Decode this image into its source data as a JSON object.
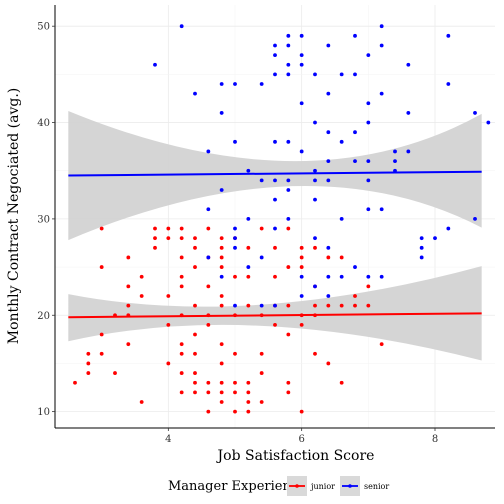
{
  "chart_data": {
    "type": "scatter",
    "title": "",
    "xlabel": "Job Satisfaction Score",
    "ylabel": "Monthly Contract Negociated (avg.)",
    "xlim": [
      2.3,
      8.9
    ],
    "ylim": [
      8.3,
      52.2
    ],
    "x_ticks": [
      4,
      6,
      8
    ],
    "y_ticks": [
      10,
      20,
      30,
      40,
      50
    ],
    "grid": true,
    "legend": {
      "title": "Manager Experience",
      "position": "bottom"
    },
    "series": [
      {
        "name": "junior",
        "color": "#ff0000",
        "trend": {
          "x": [
            2.5,
            8.7
          ],
          "y": [
            19.8,
            20.2
          ],
          "ci_low": [
            17.3,
            15.3
          ],
          "ci_high": [
            22.2,
            25.1
          ],
          "ci_mid_low": 18.9,
          "ci_mid_high": 21.1,
          "ci_mid_x": 5.2
        },
        "points": [
          [
            2.6,
            13
          ],
          [
            2.8,
            14
          ],
          [
            2.8,
            15
          ],
          [
            2.8,
            16
          ],
          [
            3.0,
            16
          ],
          [
            3.0,
            18
          ],
          [
            3.0,
            25
          ],
          [
            3.0,
            29
          ],
          [
            3.2,
            14
          ],
          [
            3.2,
            20
          ],
          [
            3.4,
            17
          ],
          [
            3.4,
            20
          ],
          [
            3.4,
            21
          ],
          [
            3.4,
            23
          ],
          [
            3.4,
            26
          ],
          [
            3.6,
            11
          ],
          [
            3.6,
            22
          ],
          [
            3.6,
            24
          ],
          [
            3.8,
            27
          ],
          [
            3.8,
            28
          ],
          [
            3.8,
            29
          ],
          [
            4.0,
            15
          ],
          [
            4.0,
            19
          ],
          [
            4.0,
            22
          ],
          [
            4.0,
            28
          ],
          [
            4.0,
            29
          ],
          [
            4.2,
            12
          ],
          [
            4.2,
            14
          ],
          [
            4.2,
            16
          ],
          [
            4.2,
            17
          ],
          [
            4.2,
            20
          ],
          [
            4.2,
            23
          ],
          [
            4.2,
            24
          ],
          [
            4.2,
            26
          ],
          [
            4.2,
            28
          ],
          [
            4.2,
            29
          ],
          [
            4.4,
            12
          ],
          [
            4.4,
            13
          ],
          [
            4.4,
            14
          ],
          [
            4.4,
            16
          ],
          [
            4.4,
            18
          ],
          [
            4.4,
            21
          ],
          [
            4.4,
            25
          ],
          [
            4.4,
            27
          ],
          [
            4.4,
            28
          ],
          [
            4.6,
            10
          ],
          [
            4.6,
            12
          ],
          [
            4.6,
            13
          ],
          [
            4.6,
            19
          ],
          [
            4.6,
            20
          ],
          [
            4.6,
            23
          ],
          [
            4.6,
            26
          ],
          [
            4.6,
            29
          ],
          [
            4.8,
            11
          ],
          [
            4.8,
            12
          ],
          [
            4.8,
            13
          ],
          [
            4.8,
            15
          ],
          [
            4.8,
            17
          ],
          [
            4.8,
            21
          ],
          [
            4.8,
            22
          ],
          [
            4.8,
            25
          ],
          [
            4.8,
            26
          ],
          [
            4.8,
            27
          ],
          [
            4.8,
            28
          ],
          [
            5.0,
            10
          ],
          [
            5.0,
            12
          ],
          [
            5.0,
            13
          ],
          [
            5.0,
            16
          ],
          [
            5.0,
            20
          ],
          [
            5.0,
            24
          ],
          [
            5.0,
            28
          ],
          [
            5.2,
            10
          ],
          [
            5.2,
            11
          ],
          [
            5.2,
            12
          ],
          [
            5.2,
            13
          ],
          [
            5.2,
            21
          ],
          [
            5.2,
            24
          ],
          [
            5.2,
            27
          ],
          [
            5.4,
            11
          ],
          [
            5.4,
            14
          ],
          [
            5.4,
            16
          ],
          [
            5.4,
            20
          ],
          [
            5.4,
            29
          ],
          [
            5.6,
            19
          ],
          [
            5.6,
            21
          ],
          [
            5.6,
            24
          ],
          [
            5.6,
            27
          ],
          [
            5.8,
            12
          ],
          [
            5.8,
            13
          ],
          [
            5.8,
            18
          ],
          [
            5.8,
            21
          ],
          [
            5.8,
            25
          ],
          [
            5.8,
            29
          ],
          [
            6.0,
            10
          ],
          [
            6.0,
            19
          ],
          [
            6.0,
            20
          ],
          [
            6.0,
            25
          ],
          [
            6.0,
            26
          ],
          [
            6.0,
            27
          ],
          [
            6.2,
            16
          ],
          [
            6.2,
            20
          ],
          [
            6.2,
            21
          ],
          [
            6.2,
            23
          ],
          [
            6.2,
            27
          ],
          [
            6.4,
            15
          ],
          [
            6.4,
            21
          ],
          [
            6.4,
            26
          ],
          [
            6.6,
            13
          ],
          [
            6.6,
            21
          ],
          [
            6.6,
            26
          ],
          [
            6.8,
            21
          ],
          [
            6.8,
            22
          ],
          [
            7.0,
            21
          ],
          [
            7.0,
            23
          ],
          [
            7.2,
            17
          ]
        ]
      },
      {
        "name": "senior",
        "color": "#0000ff",
        "trend": {
          "x": [
            2.5,
            8.7
          ],
          "y": [
            34.5,
            34.9
          ],
          "ci_low": [
            27.8,
            29.1
          ],
          "ci_high": [
            41.2,
            40.9
          ],
          "ci_mid_low": 33.4,
          "ci_mid_high": 36.0,
          "ci_mid_x": 6.1
        },
        "points": [
          [
            3.8,
            46
          ],
          [
            4.2,
            50
          ],
          [
            4.4,
            43
          ],
          [
            4.6,
            37
          ],
          [
            4.6,
            31
          ],
          [
            4.6,
            26
          ],
          [
            4.8,
            44
          ],
          [
            4.8,
            41
          ],
          [
            4.8,
            33
          ],
          [
            4.8,
            24
          ],
          [
            5.0,
            44
          ],
          [
            5.0,
            38
          ],
          [
            5.0,
            29
          ],
          [
            5.0,
            28
          ],
          [
            5.0,
            27
          ],
          [
            5.0,
            21
          ],
          [
            5.2,
            35
          ],
          [
            5.2,
            30
          ],
          [
            5.2,
            25
          ],
          [
            5.4,
            44
          ],
          [
            5.4,
            34
          ],
          [
            5.4,
            26
          ],
          [
            5.4,
            21
          ],
          [
            5.6,
            48
          ],
          [
            5.6,
            47
          ],
          [
            5.6,
            45
          ],
          [
            5.6,
            38
          ],
          [
            5.6,
            34
          ],
          [
            5.6,
            32
          ],
          [
            5.6,
            29
          ],
          [
            5.6,
            21
          ],
          [
            5.8,
            49
          ],
          [
            5.8,
            48
          ],
          [
            5.8,
            46
          ],
          [
            5.8,
            45
          ],
          [
            5.8,
            38
          ],
          [
            5.8,
            34
          ],
          [
            5.8,
            33
          ],
          [
            5.8,
            30
          ],
          [
            6.0,
            49
          ],
          [
            6.0,
            47
          ],
          [
            6.0,
            46
          ],
          [
            6.0,
            42
          ],
          [
            6.0,
            37
          ],
          [
            6.0,
            24
          ],
          [
            6.0,
            22
          ],
          [
            6.2,
            45
          ],
          [
            6.2,
            40
          ],
          [
            6.2,
            35
          ],
          [
            6.2,
            34
          ],
          [
            6.2,
            32
          ],
          [
            6.2,
            28
          ],
          [
            6.2,
            23
          ],
          [
            6.4,
            48
          ],
          [
            6.4,
            43
          ],
          [
            6.4,
            39
          ],
          [
            6.4,
            36
          ],
          [
            6.4,
            34
          ],
          [
            6.4,
            27
          ],
          [
            6.4,
            24
          ],
          [
            6.4,
            22
          ],
          [
            6.6,
            45
          ],
          [
            6.6,
            38
          ],
          [
            6.6,
            30
          ],
          [
            6.6,
            24
          ],
          [
            6.8,
            49
          ],
          [
            6.8,
            45
          ],
          [
            6.8,
            39
          ],
          [
            6.8,
            36
          ],
          [
            6.8,
            25
          ],
          [
            7.0,
            47
          ],
          [
            7.0,
            42
          ],
          [
            7.0,
            40
          ],
          [
            7.0,
            36
          ],
          [
            7.0,
            34
          ],
          [
            7.0,
            31
          ],
          [
            7.0,
            24
          ],
          [
            7.2,
            50
          ],
          [
            7.2,
            48
          ],
          [
            7.2,
            43
          ],
          [
            7.2,
            31
          ],
          [
            7.2,
            24
          ],
          [
            7.4,
            37
          ],
          [
            7.4,
            36
          ],
          [
            7.4,
            35
          ],
          [
            7.6,
            46
          ],
          [
            7.6,
            41
          ],
          [
            7.6,
            37
          ],
          [
            7.8,
            28
          ],
          [
            7.8,
            27
          ],
          [
            7.8,
            26
          ],
          [
            8.0,
            28
          ],
          [
            8.2,
            49
          ],
          [
            8.2,
            44
          ],
          [
            8.2,
            29
          ],
          [
            8.6,
            41
          ],
          [
            8.6,
            30
          ],
          [
            8.8,
            40
          ]
        ]
      }
    ]
  }
}
